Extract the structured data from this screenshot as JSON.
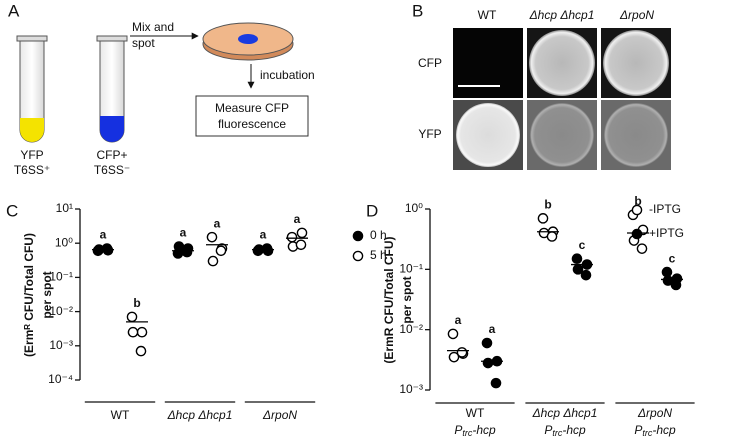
{
  "panel_a": {
    "letter": "A",
    "tube1_label": [
      "YFP",
      "T6SS⁺"
    ],
    "tube2_label": [
      "CFP+",
      "T6SS⁻"
    ],
    "step1": [
      "Mix and",
      "spot"
    ],
    "step2": "incubation",
    "readout": [
      "Measure CFP",
      "fluorescence"
    ]
  },
  "panel_b": {
    "letter": "B",
    "columns": [
      "WT",
      "Δhcp Δhcp1",
      "ΔrpoN"
    ],
    "rows": [
      "CFP",
      "YFP"
    ]
  },
  "chart_data": [
    {
      "type": "scatter",
      "panel": "C",
      "log_scale": true,
      "legend": "right",
      "ylabel": [
        "(Ermᴿ CFU/Total CFU)",
        "per spot"
      ],
      "ylim": [
        0.0001,
        10
      ],
      "yticks": [
        {
          "value": 0.0001,
          "label": "10⁻⁴"
        },
        {
          "value": 0.001,
          "label": "10⁻³"
        },
        {
          "value": 0.01,
          "label": "10⁻²"
        },
        {
          "value": 0.1,
          "label": "10⁻¹"
        },
        {
          "value": 1,
          "label": "10⁰"
        },
        {
          "value": 10,
          "label": "10¹"
        }
      ],
      "categories": [
        "WT",
        "Δhcp Δhcp1",
        "ΔrpoN"
      ],
      "series": [
        {
          "name": "0 h",
          "color": "#000000",
          "marker": "filled",
          "values": [
            [
              0.6,
              0.62,
              0.65,
              0.7
            ],
            [
              0.5,
              0.7,
              0.8,
              0.55
            ],
            [
              0.6,
              0.6,
              0.65,
              0.7
            ]
          ],
          "medians": [
            0.65,
            0.6,
            0.65
          ],
          "letters": [
            "a",
            "a",
            "a"
          ]
        },
        {
          "name": "5 h",
          "color": "#000000",
          "marker": "open",
          "values": [
            [
              0.007,
              0.0025,
              0.0025,
              0.0007
            ],
            [
              1.5,
              0.7,
              0.3,
              0.6
            ],
            [
              1.5,
              2.0,
              0.8,
              0.9
            ]
          ],
          "medians": [
            0.005,
            0.9,
            1.4
          ],
          "letters": [
            "b",
            "a",
            "a"
          ]
        }
      ]
    },
    {
      "type": "scatter",
      "panel": "D",
      "log_scale": true,
      "legend": "right",
      "ylabel": [
        "(ErmR  CFU/Total CFU)",
        "per spot"
      ],
      "ylim": [
        0.001,
        1
      ],
      "yticks": [
        {
          "value": 0.001,
          "label": "10⁻³"
        },
        {
          "value": 0.01,
          "label": "10⁻²"
        },
        {
          "value": 0.1,
          "label": "10⁻¹"
        },
        {
          "value": 1,
          "label": "10⁰"
        }
      ],
      "categories": [
        "WT",
        "Δhcp Δhcp1",
        "ΔrpoN"
      ],
      "category_sublabels": [
        [
          "P",
          "trc",
          "-hcp"
        ],
        [
          "P",
          "trc",
          "-hcp"
        ],
        [
          "P",
          "trc",
          "-hcp"
        ]
      ],
      "series": [
        {
          "name": "-IPTG",
          "color": "#000000",
          "marker": "open",
          "values": [
            [
              0.0085,
              0.004,
              0.0035,
              0.0042
            ],
            [
              0.7,
              0.42,
              0.4,
              0.35
            ],
            [
              0.8,
              0.45,
              0.3,
              0.22
            ]
          ],
          "medians": [
            0.0045,
            0.42,
            0.4
          ],
          "letters": [
            "a",
            "b",
            "b"
          ]
        },
        {
          "name": "+IPTG",
          "color": "#000000",
          "marker": "filled",
          "values": [
            [
              0.006,
              0.003,
              0.0028,
              0.0013
            ],
            [
              0.15,
              0.12,
              0.1,
              0.08
            ],
            [
              0.09,
              0.07,
              0.065,
              0.055
            ]
          ],
          "medians": [
            0.003,
            0.12,
            0.068
          ],
          "letters": [
            "a",
            "c",
            "c"
          ]
        }
      ]
    }
  ]
}
